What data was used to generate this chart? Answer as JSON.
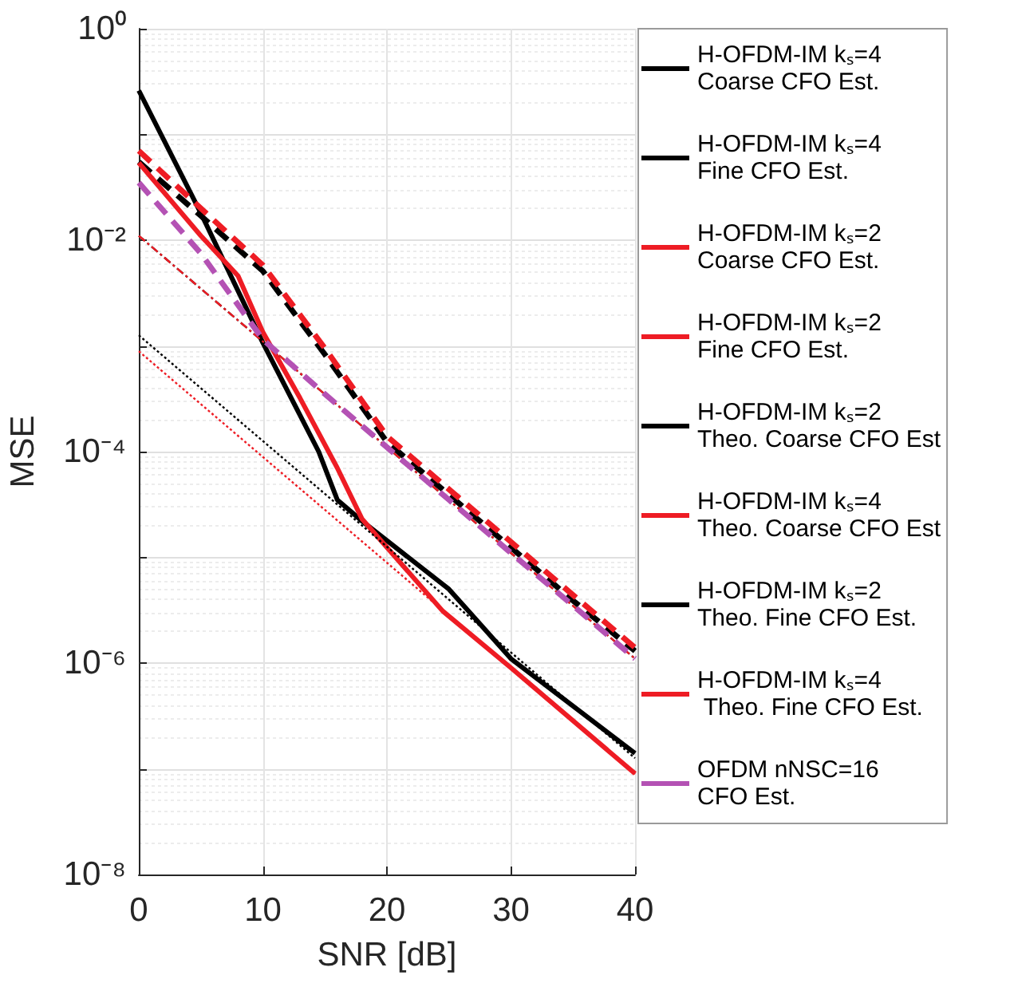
{
  "chart_data": {
    "type": "line",
    "xlabel": "SNR [dB]",
    "ylabel": "MSE",
    "log": "y",
    "grid": true,
    "legend": "right",
    "marker": "none",
    "xlim": [
      0,
      40
    ],
    "xticks": [
      0,
      10,
      20,
      30,
      40
    ],
    "ylim": [
      1e-08,
      1
    ],
    "yticks": [
      {
        "value": 1e-08,
        "label": "10⁻⁸"
      },
      {
        "value": 1e-07,
        "label": null
      },
      {
        "value": 1e-06,
        "label": "10⁻⁶"
      },
      {
        "value": 1e-05,
        "label": null
      },
      {
        "value": 0.0001,
        "label": "10⁻⁴"
      },
      {
        "value": 0.001,
        "label": null
      },
      {
        "value": 0.01,
        "label": "10⁻²"
      },
      {
        "value": 0.1,
        "label": null
      },
      {
        "value": 1,
        "label": "10⁰"
      }
    ],
    "x": [
      0,
      5,
      10,
      15,
      20,
      25,
      30,
      35,
      40
    ],
    "series": [
      {
        "name": "H-OFDM-IM kₛ=4\nCoarse CFO Est.",
        "color": "#000000",
        "line_style": "dashed",
        "values": [
          0.055,
          0.017,
          0.0051,
          0.00083,
          0.000123,
          3.9e-05,
          1.24e-05,
          3.9e-06,
          1.3e-06
        ]
      },
      {
        "name": "H-OFDM-IM kₛ=4\nFine CFO Est.",
        "color": "#000000",
        "line_style": "solid",
        "x": [
          0,
          5,
          10,
          14.5,
          16,
          18,
          25,
          30,
          40
        ],
        "values": [
          0.26,
          0.018,
          0.00107,
          0.0001,
          3.5e-05,
          2.2e-05,
          5e-06,
          1.1e-06,
          1.4e-07
        ]
      },
      {
        "name": "H-OFDM-IM kₛ=2\nCoarse CFO Est.",
        "color": "#ee1c24",
        "line_style": "dashed",
        "values": [
          0.07,
          0.02,
          0.0058,
          0.00095,
          0.00014,
          4.4e-05,
          1.4e-05,
          4.4e-06,
          1.4e-06
        ]
      },
      {
        "name": "H-OFDM-IM kₛ=2\nFine CFO Est.",
        "color": "#ee1c24",
        "line_style": "solid",
        "x": [
          0,
          5,
          8,
          10,
          13,
          16,
          18,
          24.5,
          30,
          40
        ],
        "values": [
          0.054,
          0.011,
          0.0046,
          0.00135,
          0.00032,
          7e-05,
          2.3e-05,
          3.1e-06,
          9e-07,
          9e-08
        ]
      },
      {
        "name": "H-OFDM-IM kₛ=2\nTheo. Coarse CFO Est",
        "color": "#000000",
        "line_style": "dashdot",
        "x": [
          0,
          40
        ],
        "values": [
          0.011,
          1.1e-06
        ]
      },
      {
        "name": "H-OFDM-IM kₛ=4\nTheo. Coarse CFO Est",
        "color": "#ee1c24",
        "line_style": "dashdot",
        "x": [
          0,
          40
        ],
        "values": [
          0.011,
          1.1e-06
        ]
      },
      {
        "name": "H-OFDM-IM kₛ=2\nTheo. Fine CFO Est.",
        "color": "#000000",
        "line_style": "dotted",
        "x": [
          0,
          40
        ],
        "values": [
          0.00126,
          1.26e-07
        ]
      },
      {
        "name": "H-OFDM-IM kₛ=4\n Theo. Fine CFO Est.",
        "color": "#ee1c24",
        "line_style": "dotted",
        "x": [
          0,
          40
        ],
        "values": [
          0.00089,
          8.9e-08
        ]
      },
      {
        "name": "OFDM nNSC=16\nCFO Est.",
        "color": "#b452b4",
        "line_style": "dashed",
        "x": [
          0,
          5,
          10,
          15,
          20,
          25,
          30,
          35,
          40
        ],
        "values": [
          0.035,
          0.0075,
          0.00115,
          0.00035,
          0.00011,
          3.5e-05,
          1.1e-05,
          3.5e-06,
          1.1e-06
        ]
      }
    ]
  }
}
